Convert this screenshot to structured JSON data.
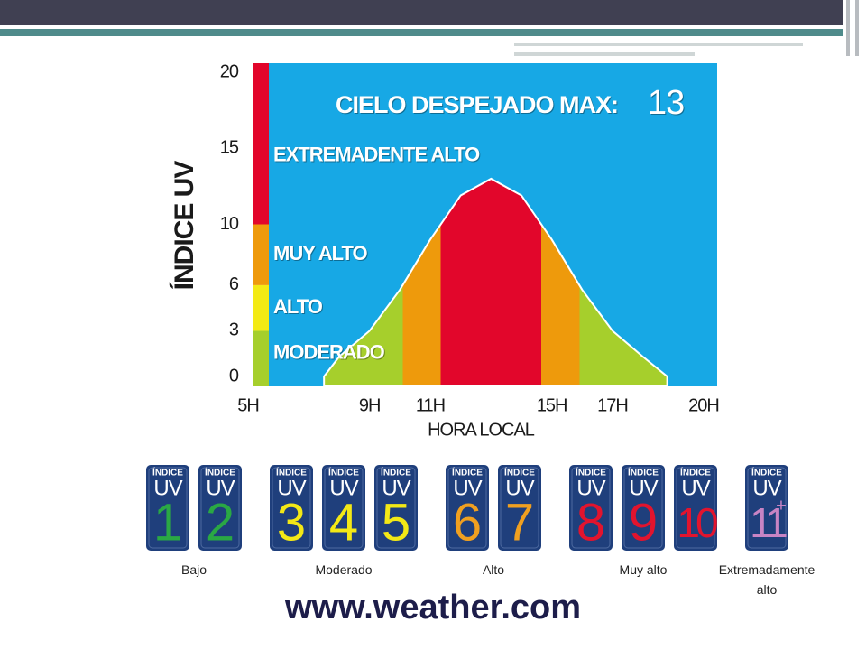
{
  "chart_data": {
    "type": "area",
    "annotation": "CIELO DESPEJADO MAX:",
    "annotation_value": 13,
    "xlabel": "HORA LOCAL",
    "ylabel": "ÍNDICE UV",
    "x": [
      7.5,
      8,
      9,
      10,
      11,
      12,
      13,
      14,
      15,
      16,
      17,
      18,
      18.8
    ],
    "values": [
      0,
      1.3,
      3,
      5.7,
      9,
      11.9,
      13,
      11.9,
      9,
      5.7,
      3,
      1.3,
      0
    ],
    "levels": [
      {
        "label": "MODERADO",
        "from": 0,
        "to": 3,
        "color": "#a6cf2c"
      },
      {
        "label": "ALTO",
        "from": 3,
        "to": 6,
        "color": "#f3ea14"
      },
      {
        "label": "MUY ALTO",
        "from": 6,
        "to": 10,
        "color": "#ee9a0c"
      },
      {
        "label": "EXTREMADENTE ALTO",
        "from": 10,
        "to": 20,
        "color": "#e2062b"
      }
    ],
    "background": "#17a8e5",
    "xlim": [
      5,
      20
    ],
    "xticks": [
      {
        "value": 5,
        "label": "5H"
      },
      {
        "value": 9,
        "label": "9H"
      },
      {
        "value": 11,
        "label": "11H"
      },
      {
        "value": 15,
        "label": "15H"
      },
      {
        "value": 17,
        "label": "17H"
      },
      {
        "value": 20,
        "label": "20H"
      }
    ],
    "ylim": [
      0,
      20
    ],
    "yticks": [
      0,
      3,
      6,
      10,
      15,
      20
    ]
  },
  "uv_scale": {
    "badge_top": "ÍNDICE",
    "badge_mid": "UV",
    "groups": [
      {
        "label": "Bajo",
        "color": "#2aa844",
        "numbers": [
          1,
          2
        ]
      },
      {
        "label": "Moderado",
        "color": "#f3e816",
        "numbers": [
          3,
          4,
          5
        ]
      },
      {
        "label": "Alto",
        "color": "#f0a020",
        "numbers": [
          6,
          7
        ]
      },
      {
        "label": "Muy alto",
        "color": "#e2142e",
        "numbers": [
          8,
          9,
          10
        ]
      },
      {
        "label": "Extremadamente alto",
        "color": "#c884c4",
        "numbers": [
          11
        ],
        "extra": "+"
      }
    ]
  },
  "footer": "www.weather.com"
}
